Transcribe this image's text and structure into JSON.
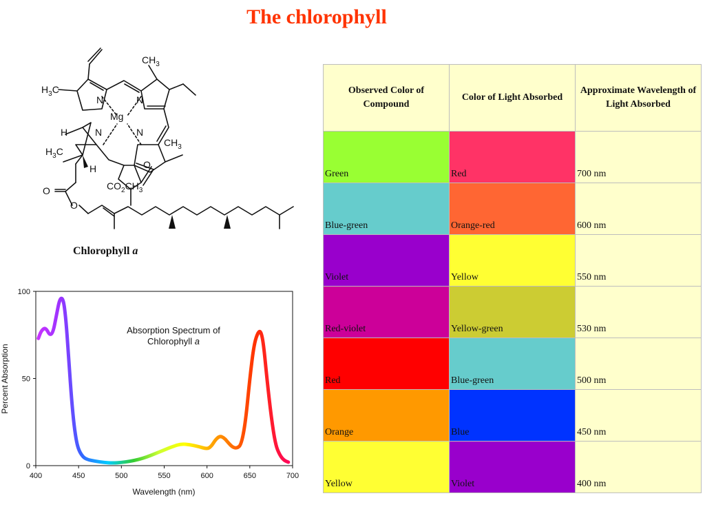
{
  "title": "The chlorophyll",
  "molecule": {
    "caption_name": "Chlorophyll",
    "caption_letter": "a",
    "labels": {
      "ch3_top": "CH",
      "ch3_top_sub": "3",
      "h3c_left": "H",
      "h3c_left_sub": "3",
      "h3c_left_c": "C",
      "n1": "N",
      "n2": "N",
      "n3": "N",
      "n4": "N",
      "mg": "Mg",
      "h_upper": "H",
      "h3c_lower": "H",
      "h3c_lower_sub": "3",
      "h3c_lower_c": "C",
      "h_lower": "H",
      "ch3_right": "CH",
      "ch3_right_sub": "3",
      "o_ketone": "O",
      "ester": "CO",
      "ester_sub": "2",
      "ester_tail": "CH",
      "ester_tail_sub": "3",
      "o_carbonyl": "O",
      "o_ether": "O"
    }
  },
  "chart_data": {
    "type": "line",
    "title": "Absorption Spectrum of Chlorophyll a",
    "title_line1": "Absorption Spectrum of",
    "title_line2_name": "Chlorophyll",
    "title_line2_letter": "a",
    "xlabel": "Wavelength (nm)",
    "ylabel": "Percent Absorption",
    "xlim": [
      400,
      700
    ],
    "ylim": [
      0,
      100
    ],
    "xticks": [
      "400",
      "450",
      "500",
      "550",
      "600",
      "650",
      "700"
    ],
    "yticks": [
      "0",
      "50",
      "100"
    ],
    "grid": false,
    "x": [
      403,
      406,
      410,
      413,
      416,
      420,
      424,
      428,
      432,
      435,
      438,
      441,
      444,
      447,
      450,
      455,
      460,
      470,
      480,
      490,
      500,
      510,
      520,
      530,
      540,
      550,
      560,
      570,
      580,
      590,
      600,
      605,
      610,
      615,
      620,
      625,
      630,
      635,
      640,
      645,
      650,
      655,
      660,
      663,
      666,
      670,
      675,
      680,
      685,
      690,
      695
    ],
    "y": [
      73,
      77,
      79,
      78,
      75,
      76,
      86,
      96,
      96,
      85,
      65,
      43,
      26,
      15,
      9,
      5,
      3.5,
      2.5,
      1.8,
      1.5,
      1.8,
      2.5,
      3.5,
      5,
      7,
      9,
      11,
      12.5,
      12,
      11,
      9.5,
      11,
      15,
      17,
      16,
      13,
      10.5,
      10,
      12,
      25,
      50,
      70,
      77,
      77,
      70,
      50,
      28,
      12,
      6,
      3,
      2
    ]
  },
  "table": {
    "headers": [
      "Observed Color of Compound",
      "Color of Light Absorbed",
      "Approximate Wavelength of Light Absorbed"
    ],
    "rows": [
      {
        "observed": "Green",
        "observed_color": "#99ff33",
        "absorbed": "Red",
        "absorbed_color": "#ff3366",
        "wavelength": "700 nm"
      },
      {
        "observed": "Blue-green",
        "observed_color": "#66cccc",
        "absorbed": "Orange-red",
        "absorbed_color": "#ff6633",
        "wavelength": "600 nm"
      },
      {
        "observed": "Violet",
        "observed_color": "#9900cc",
        "absorbed": "Yellow",
        "absorbed_color": "#ffff33",
        "wavelength": "550 nm"
      },
      {
        "observed": "Red-violet",
        "observed_color": "#cc0099",
        "absorbed": "Yellow-green",
        "absorbed_color": "#cccc33",
        "wavelength": "530 nm"
      },
      {
        "observed": "Red",
        "observed_color": "#ff0000",
        "absorbed": "Blue-green",
        "absorbed_color": "#66cccc",
        "wavelength": "500 nm"
      },
      {
        "observed": "Orange",
        "observed_color": "#ff9900",
        "absorbed": "Blue",
        "absorbed_color": "#0033ff",
        "wavelength": "450 nm"
      },
      {
        "observed": "Yellow",
        "observed_color": "#ffff33",
        "absorbed": "Violet",
        "absorbed_color": "#9900cc",
        "wavelength": "400 nm"
      }
    ]
  },
  "colors": {
    "title": "#ff3300",
    "header_bg": "#ffffcc"
  }
}
